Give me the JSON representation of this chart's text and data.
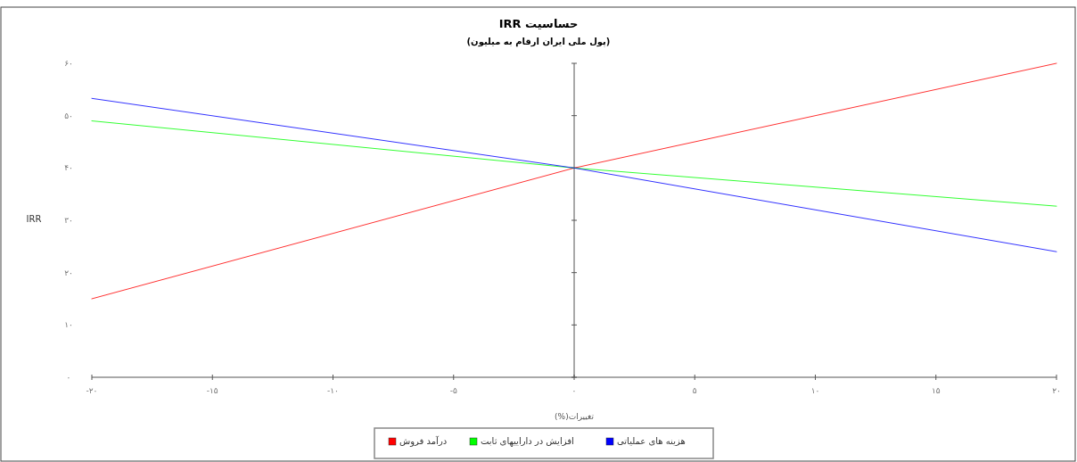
{
  "chart_data": {
    "type": "line",
    "title": "حساسیت IRR",
    "subtitle": "(پول ملی ایران ارقام به میلیون)",
    "xlabel": "تغییرات(%)",
    "ylabel": "IRR",
    "x": [
      -20,
      0,
      20
    ],
    "series": [
      {
        "name": "درآمد فروش",
        "color": "#ff0000",
        "values": [
          15,
          40,
          60
        ]
      },
      {
        "name": "افزایش در داراییهای ثابت",
        "color": "#00ff00",
        "values": [
          49,
          40,
          32.7
        ]
      },
      {
        "name": "هزینه های عملیاتی",
        "color": "#0000ff",
        "values": [
          53.3,
          40,
          24
        ]
      }
    ],
    "xlim": [
      -20,
      20
    ],
    "xticks": [
      {
        "value": -20,
        "label": "-۲۰"
      },
      {
        "value": -15,
        "label": "-۱۵"
      },
      {
        "value": -10,
        "label": "-۱۰"
      },
      {
        "value": -5,
        "label": "-۵"
      },
      {
        "value": 0,
        "label": "۰"
      },
      {
        "value": 5,
        "label": "۵"
      },
      {
        "value": 10,
        "label": "۱۰"
      },
      {
        "value": 15,
        "label": "۱۵"
      },
      {
        "value": 20,
        "label": "۲۰"
      }
    ],
    "ylim": [
      0,
      60
    ],
    "yticks": [
      {
        "value": 0,
        "label": "۰"
      },
      {
        "value": 10,
        "label": "۱۰"
      },
      {
        "value": 20,
        "label": "۲۰"
      },
      {
        "value": 30,
        "label": "۳۰"
      },
      {
        "value": 40,
        "label": "۴۰"
      },
      {
        "value": 50,
        "label": "۵۰"
      },
      {
        "value": 60,
        "label": "۶۰"
      }
    ],
    "legend": "bottom",
    "marker": "none",
    "line_style": "solid"
  }
}
